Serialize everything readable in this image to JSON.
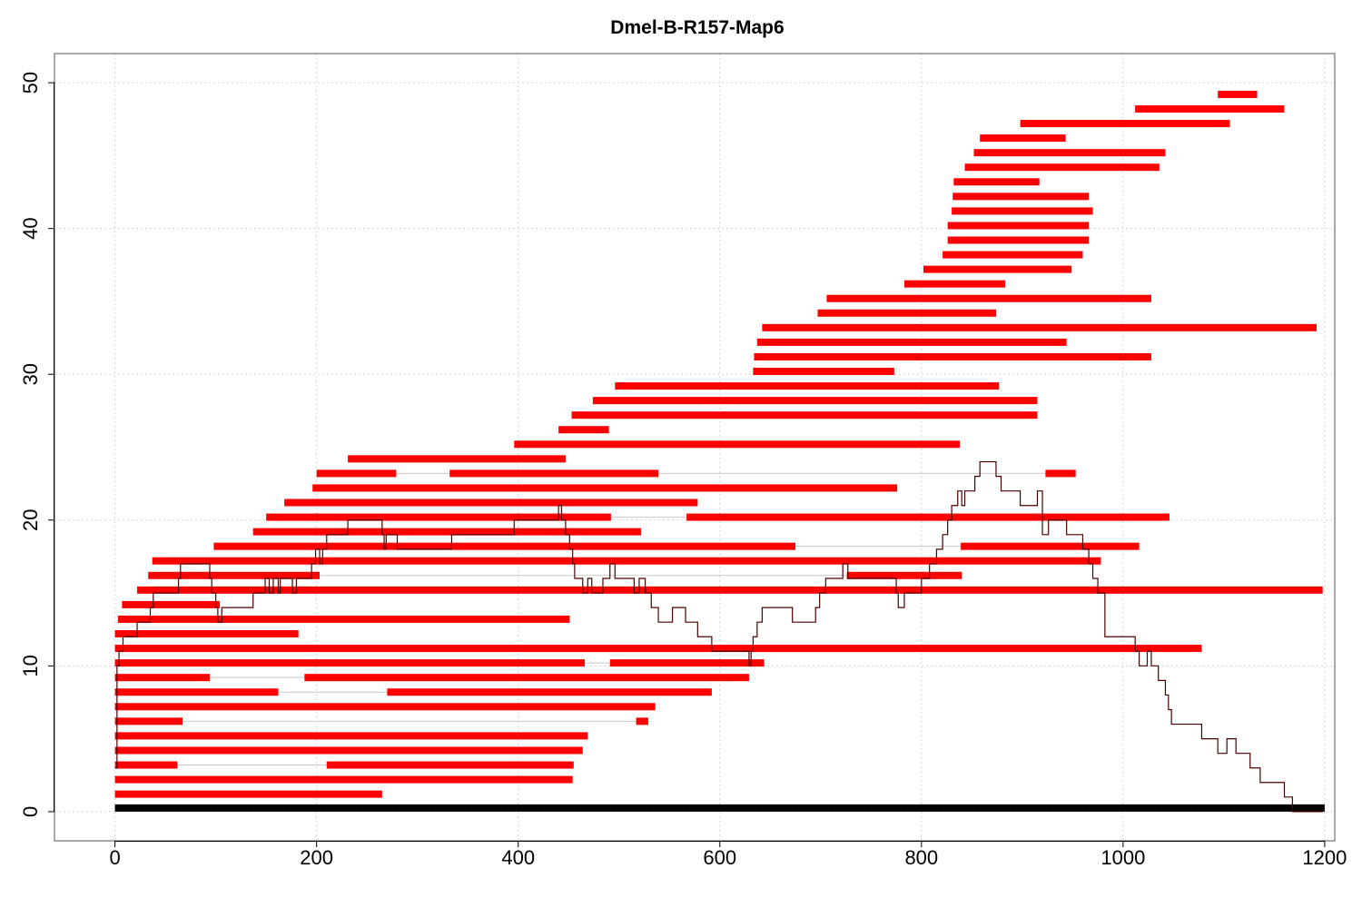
{
  "chart_data": {
    "type": "segments",
    "title": "Dmel-B-R157-Map6",
    "xlabel": "",
    "ylabel": "",
    "xlim": [
      -60,
      1210
    ],
    "ylim": [
      -2,
      52
    ],
    "x_ticks": [
      0,
      200,
      400,
      600,
      800,
      1000,
      1200
    ],
    "y_ticks": [
      0,
      10,
      20,
      30,
      40,
      50
    ],
    "grid": true,
    "colors": {
      "segments": "#ff0000",
      "reference": "#000000",
      "coverage": "#4d0000",
      "connector": "#c8c8c8",
      "grid": "#d3d3d3"
    },
    "reference": {
      "x0": 0,
      "x1": 1200,
      "y": 0.25
    },
    "segments": [
      {
        "y": 1.2,
        "spans": [
          [
            0,
            265
          ]
        ]
      },
      {
        "y": 2.2,
        "spans": [
          [
            0,
            454
          ]
        ]
      },
      {
        "y": 3.2,
        "spans": [
          [
            0,
            62
          ],
          [
            210,
            455
          ]
        ]
      },
      {
        "y": 4.2,
        "spans": [
          [
            0,
            464
          ]
        ]
      },
      {
        "y": 5.2,
        "spans": [
          [
            0,
            469
          ]
        ]
      },
      {
        "y": 6.2,
        "spans": [
          [
            0,
            67
          ],
          [
            517,
            529
          ]
        ]
      },
      {
        "y": 7.2,
        "spans": [
          [
            0,
            536
          ]
        ]
      },
      {
        "y": 8.2,
        "spans": [
          [
            0,
            162
          ],
          [
            270,
            592
          ]
        ]
      },
      {
        "y": 9.2,
        "spans": [
          [
            0,
            94
          ],
          [
            188,
            629
          ]
        ]
      },
      {
        "y": 10.2,
        "spans": [
          [
            0,
            466
          ],
          [
            491,
            644
          ]
        ]
      },
      {
        "y": 11.2,
        "spans": [
          [
            0,
            1078
          ]
        ]
      },
      {
        "y": 12.2,
        "spans": [
          [
            0,
            182
          ]
        ]
      },
      {
        "y": 13.2,
        "spans": [
          [
            3,
            451
          ]
        ]
      },
      {
        "y": 14.2,
        "spans": [
          [
            7,
            104
          ]
        ]
      },
      {
        "y": 15.2,
        "spans": [
          [
            22,
            1198
          ]
        ]
      },
      {
        "y": 16.2,
        "spans": [
          [
            33,
            203
          ],
          [
            726,
            840
          ]
        ]
      },
      {
        "y": 17.2,
        "spans": [
          [
            37,
            978
          ]
        ]
      },
      {
        "y": 18.2,
        "spans": [
          [
            98,
            675
          ],
          [
            839,
            1016
          ]
        ]
      },
      {
        "y": 19.2,
        "spans": [
          [
            137,
            522
          ]
        ]
      },
      {
        "y": 20.2,
        "spans": [
          [
            150,
            492
          ],
          [
            567,
            1046
          ]
        ]
      },
      {
        "y": 21.2,
        "spans": [
          [
            168,
            578
          ]
        ]
      },
      {
        "y": 22.2,
        "spans": [
          [
            196,
            776
          ]
        ]
      },
      {
        "y": 23.2,
        "spans": [
          [
            200,
            279
          ],
          [
            332,
            539
          ],
          [
            923,
            953
          ]
        ]
      },
      {
        "y": 24.2,
        "spans": [
          [
            231,
            447
          ]
        ]
      },
      {
        "y": 25.2,
        "spans": [
          [
            396,
            838
          ]
        ]
      },
      {
        "y": 26.2,
        "spans": [
          [
            440,
            490
          ]
        ]
      },
      {
        "y": 27.2,
        "spans": [
          [
            453,
            915
          ]
        ]
      },
      {
        "y": 28.2,
        "spans": [
          [
            474,
            915
          ]
        ]
      },
      {
        "y": 29.2,
        "spans": [
          [
            496,
            877
          ]
        ]
      },
      {
        "y": 30.2,
        "spans": [
          [
            633,
            773
          ]
        ]
      },
      {
        "y": 31.2,
        "spans": [
          [
            634,
            1028
          ]
        ]
      },
      {
        "y": 32.2,
        "spans": [
          [
            637,
            944
          ]
        ]
      },
      {
        "y": 33.2,
        "spans": [
          [
            642,
            1192
          ]
        ]
      },
      {
        "y": 34.2,
        "spans": [
          [
            697,
            874
          ]
        ]
      },
      {
        "y": 35.2,
        "spans": [
          [
            706,
            1028
          ]
        ]
      },
      {
        "y": 36.2,
        "spans": [
          [
            783,
            883
          ]
        ]
      },
      {
        "y": 37.2,
        "spans": [
          [
            802,
            949
          ]
        ]
      },
      {
        "y": 38.2,
        "spans": [
          [
            821,
            960
          ]
        ]
      },
      {
        "y": 39.2,
        "spans": [
          [
            826,
            966
          ]
        ]
      },
      {
        "y": 40.2,
        "spans": [
          [
            826,
            966
          ]
        ]
      },
      {
        "y": 41.2,
        "spans": [
          [
            830,
            970
          ]
        ]
      },
      {
        "y": 42.2,
        "spans": [
          [
            831,
            966
          ]
        ]
      },
      {
        "y": 43.2,
        "spans": [
          [
            832,
            917
          ]
        ]
      },
      {
        "y": 44.2,
        "spans": [
          [
            843,
            1036
          ]
        ]
      },
      {
        "y": 45.2,
        "spans": [
          [
            852,
            1042
          ]
        ]
      },
      {
        "y": 46.2,
        "spans": [
          [
            858,
            943
          ]
        ]
      },
      {
        "y": 47.2,
        "spans": [
          [
            898,
            1106
          ]
        ]
      },
      {
        "y": 48.2,
        "spans": [
          [
            1012,
            1160
          ]
        ]
      },
      {
        "y": 49.2,
        "spans": [
          [
            1094,
            1133
          ]
        ]
      }
    ],
    "coverage": {
      "x": [
        0,
        2,
        4,
        8,
        22,
        35,
        38,
        63,
        65,
        94,
        96,
        100,
        102,
        106,
        137,
        149,
        153,
        157,
        162,
        164,
        176,
        180,
        195,
        199,
        203,
        206,
        210,
        231,
        265,
        267,
        269,
        280,
        334,
        396,
        440,
        443,
        447,
        451,
        454,
        456,
        464,
        469,
        473,
        484,
        491,
        496,
        515,
        520,
        526,
        532,
        539,
        553,
        566,
        578,
        592,
        629,
        631,
        633,
        637,
        642,
        672,
        695,
        699,
        705,
        722,
        727,
        775,
        777,
        783,
        800,
        808,
        815,
        821,
        826,
        830,
        836,
        840,
        843,
        853,
        858,
        874,
        879,
        898,
        915,
        920,
        926,
        944,
        960,
        966,
        970,
        975,
        982,
        1012,
        1016,
        1024,
        1028,
        1035,
        1042,
        1045,
        1048,
        1078,
        1094,
        1103,
        1112,
        1126,
        1136,
        1160,
        1168,
        1190,
        1198
      ],
      "y": [
        3,
        10,
        11,
        12,
        13,
        14,
        15,
        16,
        17,
        16,
        15,
        14,
        13,
        14,
        15,
        16,
        15,
        16,
        15,
        16,
        15,
        16,
        17,
        18,
        17,
        18,
        19,
        20,
        19,
        18,
        19,
        18,
        19,
        20,
        21,
        20,
        19,
        18,
        17,
        16,
        15,
        16,
        15,
        16,
        17,
        16,
        15,
        16,
        15,
        14,
        13,
        14,
        13,
        12,
        11,
        10,
        11,
        12,
        13,
        14,
        13,
        14,
        15,
        16,
        17,
        16,
        15,
        14,
        15,
        16,
        17,
        18,
        19,
        20,
        21,
        22,
        21,
        22,
        23,
        24,
        23,
        22,
        21,
        22,
        19,
        20,
        19,
        18,
        17,
        16,
        15,
        12,
        11,
        10,
        11,
        10,
        9,
        8,
        7,
        6,
        5,
        4,
        5,
        4,
        3,
        2,
        1,
        0,
        0,
        0
      ]
    }
  }
}
